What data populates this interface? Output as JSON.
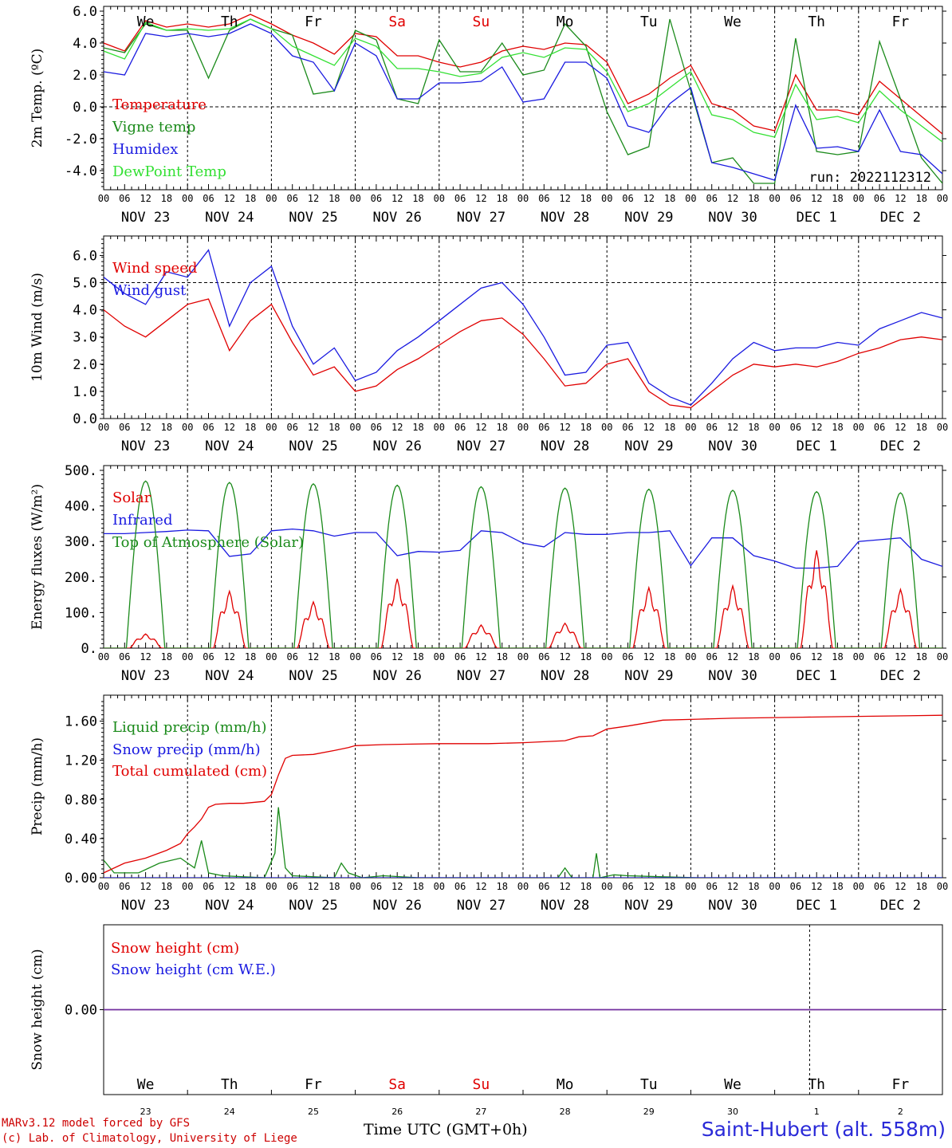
{
  "footer": {
    "model_line": "MARv3.12 model forced by GFS",
    "lab_line": "(c) Lab. of Climatology, University of Liege",
    "xlabel": "Time UTC (GMT+0h)",
    "station": "Saint-Hubert (alt. 558m)"
  },
  "colors": {
    "red": "#e00000",
    "green": "#1a8a1a",
    "blue": "#1a1ae0",
    "lightgreen": "#33e033",
    "purple": "#7030a0"
  },
  "days": {
    "dates": [
      "NOV 23",
      "NOV 24",
      "NOV 25",
      "NOV 26",
      "NOV 27",
      "NOV 28",
      "NOV 29",
      "NOV 30",
      "DEC  1",
      "DEC  2"
    ],
    "weekdays": [
      "We",
      "Th",
      "Fr",
      "Sa",
      "Su",
      "Mo",
      "Tu",
      "We",
      "Th",
      "Fr"
    ],
    "weekday_colors": [
      "black",
      "black",
      "black",
      "red",
      "red",
      "black",
      "black",
      "black",
      "black",
      "black"
    ],
    "day_numbers": [
      "23",
      "24",
      "25",
      "26",
      "27",
      "28",
      "29",
      "30",
      "1",
      "2"
    ],
    "hour_ticks": [
      "00",
      "06",
      "12",
      "18"
    ],
    "final_tick": "00"
  },
  "chart_data": [
    {
      "type": "line",
      "ylabel": "2m Temp. (ºC)",
      "yticks": [
        "6.0",
        "4.0",
        "2.0",
        "0.0",
        "-2.0",
        "-4.0"
      ],
      "ylim": [
        -5.0,
        6.0
      ],
      "annotation": "run: 2022112312",
      "x_unit": "hours since NOV 23 00",
      "series": [
        {
          "name": "Temperature",
          "color": "red",
          "x": [
            0,
            6,
            12,
            18,
            24,
            30,
            36,
            42,
            48,
            54,
            60,
            66,
            72,
            78,
            84,
            90,
            96,
            102,
            108,
            114,
            120,
            126,
            132,
            138,
            144,
            150,
            156,
            162,
            168,
            174,
            180,
            186,
            192,
            198,
            204,
            210,
            216,
            222,
            228,
            234,
            240
          ],
          "values": [
            4.0,
            3.5,
            5.4,
            5.0,
            5.2,
            5.0,
            5.2,
            5.8,
            5.2,
            4.5,
            4.0,
            3.3,
            4.6,
            4.4,
            3.2,
            3.2,
            2.8,
            2.5,
            2.8,
            3.5,
            3.8,
            3.6,
            4.0,
            3.9,
            2.8,
            0.2,
            0.8,
            1.8,
            2.6,
            0.2,
            -0.2,
            -1.2,
            -1.5,
            2.0,
            -0.2,
            -0.2,
            -0.5,
            1.6,
            0.5,
            -0.6,
            -1.7
          ]
        },
        {
          "name": "Vigne temp",
          "color": "green",
          "x": [
            0,
            6,
            12,
            18,
            24,
            30,
            36,
            42,
            48,
            54,
            60,
            66,
            72,
            78,
            84,
            90,
            96,
            102,
            108,
            114,
            120,
            126,
            132,
            138,
            144,
            150,
            156,
            162,
            168,
            174,
            180,
            186,
            192,
            198,
            204,
            210,
            216,
            222,
            228,
            234,
            240
          ],
          "values": [
            3.7,
            3.4,
            5.2,
            4.8,
            4.8,
            1.8,
            4.8,
            5.5,
            4.9,
            4.5,
            0.8,
            1.0,
            4.8,
            4.2,
            0.5,
            0.2,
            4.2,
            2.2,
            2.2,
            4.0,
            2.0,
            2.3,
            5.2,
            3.8,
            -0.3,
            -3.0,
            -2.5,
            5.5,
            1.0,
            -3.5,
            -3.2,
            -4.8,
            -4.8,
            4.3,
            -2.8,
            -3.0,
            -2.8,
            4.1,
            0.5,
            -3.2,
            -4.8
          ]
        },
        {
          "name": "Humidex",
          "color": "blue",
          "x": [
            0,
            6,
            12,
            18,
            24,
            30,
            36,
            42,
            48,
            54,
            60,
            66,
            72,
            78,
            84,
            90,
            96,
            102,
            108,
            114,
            120,
            126,
            132,
            138,
            144,
            150,
            156,
            162,
            168,
            174,
            180,
            186,
            192,
            198,
            204,
            210,
            216,
            222,
            228,
            234,
            240
          ],
          "values": [
            2.2,
            2.0,
            4.6,
            4.4,
            4.6,
            4.4,
            4.6,
            5.2,
            4.6,
            3.2,
            2.8,
            1.0,
            4.0,
            3.2,
            0.5,
            0.5,
            1.5,
            1.5,
            1.6,
            2.5,
            0.3,
            0.5,
            2.8,
            2.8,
            1.8,
            -1.2,
            -1.6,
            0.2,
            1.2,
            -3.5,
            -3.8,
            -4.2,
            -4.6,
            0.1,
            -2.6,
            -2.5,
            -2.8,
            -0.2,
            -2.8,
            -3.0,
            -4.2
          ]
        },
        {
          "name": "DewPoint Temp",
          "color": "lightgreen",
          "x": [
            0,
            6,
            12,
            18,
            24,
            30,
            36,
            42,
            48,
            54,
            60,
            66,
            72,
            78,
            84,
            90,
            96,
            102,
            108,
            114,
            120,
            126,
            132,
            138,
            144,
            150,
            156,
            162,
            168,
            174,
            180,
            186,
            192,
            198,
            204,
            210,
            216,
            222,
            228,
            234,
            240
          ],
          "values": [
            3.5,
            3.0,
            5.3,
            4.8,
            4.9,
            4.8,
            4.9,
            5.5,
            4.9,
            3.8,
            3.2,
            2.6,
            4.3,
            3.8,
            2.4,
            2.4,
            2.2,
            1.9,
            2.1,
            3.1,
            3.4,
            3.1,
            3.7,
            3.6,
            2.2,
            -0.3,
            0.2,
            1.2,
            2.2,
            -0.5,
            -0.8,
            -1.6,
            -1.9,
            1.4,
            -0.8,
            -0.6,
            -1.0,
            1.0,
            -0.2,
            -1.2,
            -2.2
          ]
        }
      ]
    },
    {
      "type": "line",
      "ylabel": "10m Wind (m/s)",
      "yticks": [
        "6.0",
        "5.0",
        "4.0",
        "3.0",
        "2.0",
        "1.0",
        "0.0"
      ],
      "ylim": [
        0.0,
        6.6
      ],
      "x_unit": "hours since NOV 23 00",
      "series": [
        {
          "name": "Wind speed",
          "color": "red",
          "x": [
            0,
            6,
            12,
            18,
            24,
            30,
            36,
            42,
            48,
            54,
            60,
            66,
            72,
            78,
            84,
            90,
            96,
            102,
            108,
            114,
            120,
            126,
            132,
            138,
            144,
            150,
            156,
            162,
            168,
            174,
            180,
            186,
            192,
            198,
            204,
            210,
            216,
            222,
            228,
            234,
            240
          ],
          "values": [
            4.0,
            3.4,
            3.0,
            3.6,
            4.2,
            4.4,
            2.5,
            3.6,
            4.2,
            2.8,
            1.6,
            1.9,
            1.0,
            1.2,
            1.8,
            2.2,
            2.7,
            3.2,
            3.6,
            3.7,
            3.1,
            2.2,
            1.2,
            1.3,
            2.0,
            2.2,
            1.0,
            0.5,
            0.4,
            1.0,
            1.6,
            2.0,
            1.9,
            2.0,
            1.9,
            2.1,
            2.4,
            2.6,
            2.9,
            3.0,
            2.9
          ]
        },
        {
          "name": "Wind gust",
          "color": "blue",
          "x": [
            0,
            6,
            12,
            18,
            24,
            30,
            36,
            42,
            48,
            54,
            60,
            66,
            72,
            78,
            84,
            90,
            96,
            102,
            108,
            114,
            120,
            126,
            132,
            138,
            144,
            150,
            156,
            162,
            168,
            174,
            180,
            186,
            192,
            198,
            204,
            210,
            216,
            222,
            228,
            234,
            240
          ],
          "values": [
            5.2,
            4.6,
            4.2,
            5.4,
            5.2,
            6.2,
            3.4,
            5.0,
            5.6,
            3.4,
            2.0,
            2.6,
            1.4,
            1.7,
            2.5,
            3.0,
            3.6,
            4.2,
            4.8,
            5.0,
            4.2,
            3.0,
            1.6,
            1.7,
            2.7,
            2.8,
            1.3,
            0.8,
            0.5,
            1.3,
            2.2,
            2.8,
            2.5,
            2.6,
            2.6,
            2.8,
            2.7,
            3.3,
            3.6,
            3.9,
            3.7
          ]
        }
      ]
    },
    {
      "type": "line",
      "ylabel": "Energy fluxes (W/m²)",
      "yticks": [
        "500.",
        "400.",
        "300.",
        "200.",
        "100.",
        "0."
      ],
      "ylim": [
        0,
        500
      ],
      "x_unit": "hours since NOV 23 00",
      "series": [
        {
          "name": "Solar",
          "color": "red",
          "peaks_hour": [
            12,
            36,
            60,
            84,
            108,
            132,
            156,
            180,
            204,
            228
          ],
          "peak_values": [
            40,
            160,
            130,
            195,
            65,
            70,
            170,
            175,
            275,
            165
          ]
        },
        {
          "name": "Infrared",
          "color": "blue",
          "x": [
            0,
            6,
            12,
            18,
            24,
            30,
            36,
            42,
            48,
            54,
            60,
            66,
            72,
            78,
            84,
            90,
            96,
            102,
            108,
            114,
            120,
            126,
            132,
            138,
            144,
            150,
            156,
            162,
            168,
            174,
            180,
            186,
            192,
            198,
            204,
            210,
            216,
            222,
            228,
            234,
            240
          ],
          "values": [
            322,
            322,
            325,
            328,
            332,
            330,
            258,
            265,
            330,
            335,
            330,
            315,
            325,
            325,
            260,
            272,
            270,
            275,
            330,
            325,
            295,
            285,
            325,
            320,
            320,
            325,
            325,
            330,
            232,
            310,
            310,
            260,
            245,
            225,
            225,
            230,
            300,
            305,
            310,
            250,
            230
          ]
        },
        {
          "name": "Top of Atmosphere (Solar)",
          "color": "green",
          "peaks_hour": [
            12,
            36,
            60,
            84,
            108,
            132,
            156,
            180,
            204,
            228
          ],
          "peak_values": [
            470,
            466,
            462,
            458,
            454,
            450,
            447,
            444,
            440,
            437
          ]
        }
      ]
    },
    {
      "type": "line",
      "ylabel": "Precip (mm/h)",
      "yticks": [
        "1.60",
        "1.20",
        "0.80",
        "0.40",
        "0.00"
      ],
      "ylim": [
        0.0,
        1.8
      ],
      "x_unit": "hours since NOV 23 00",
      "series": [
        {
          "name": "Liquid precip (mm/h)",
          "color": "green",
          "x": [
            0,
            3,
            10,
            16,
            22,
            26,
            28,
            30,
            34,
            46,
            49,
            50,
            52,
            54,
            66,
            68,
            70,
            74,
            80,
            90,
            110,
            130,
            132,
            134,
            136,
            140,
            141,
            142,
            146,
            150,
            160,
            170,
            200,
            240
          ],
          "values": [
            0.18,
            0.05,
            0.05,
            0.15,
            0.2,
            0.1,
            0.38,
            0.05,
            0.02,
            0.0,
            0.25,
            0.72,
            0.1,
            0.02,
            0.0,
            0.15,
            0.05,
            0.0,
            0.02,
            0.0,
            0.0,
            0.0,
            0.1,
            0.0,
            0.0,
            0.0,
            0.25,
            0.0,
            0.03,
            0.02,
            0.01,
            0.0,
            0.0,
            0.0
          ]
        },
        {
          "name": "Snow precip (mm/h)",
          "color": "blue",
          "x": [
            0,
            240
          ],
          "values": [
            0.0,
            0.0
          ]
        },
        {
          "name": "Total cumulated (cm)",
          "color": "red",
          "x": [
            0,
            6,
            12,
            18,
            22,
            24,
            26,
            28,
            30,
            32,
            36,
            40,
            46,
            48,
            50,
            52,
            54,
            60,
            66,
            70,
            72,
            80,
            96,
            110,
            120,
            132,
            136,
            140,
            144,
            150,
            160,
            170,
            180,
            200,
            220,
            240
          ],
          "values": [
            0.05,
            0.15,
            0.2,
            0.28,
            0.35,
            0.45,
            0.52,
            0.6,
            0.72,
            0.75,
            0.76,
            0.76,
            0.78,
            0.85,
            1.05,
            1.22,
            1.25,
            1.26,
            1.3,
            1.33,
            1.35,
            1.36,
            1.37,
            1.37,
            1.38,
            1.4,
            1.44,
            1.45,
            1.52,
            1.55,
            1.61,
            1.62,
            1.63,
            1.64,
            1.65,
            1.66
          ]
        }
      ]
    },
    {
      "type": "line",
      "ylabel": "Snow height (cm)",
      "yticks": [
        "0.00"
      ],
      "ylim": [
        -1,
        1
      ],
      "x_unit": "hours since NOV 23 00",
      "series": [
        {
          "name": "Snow height (cm)",
          "color": "red",
          "x": [
            0,
            240
          ],
          "values": [
            0.0,
            0.0
          ]
        },
        {
          "name": "Snow height (cm W.E.)",
          "color": "blue",
          "x": [
            0,
            240
          ],
          "values": [
            0.0,
            0.0
          ]
        }
      ]
    }
  ]
}
